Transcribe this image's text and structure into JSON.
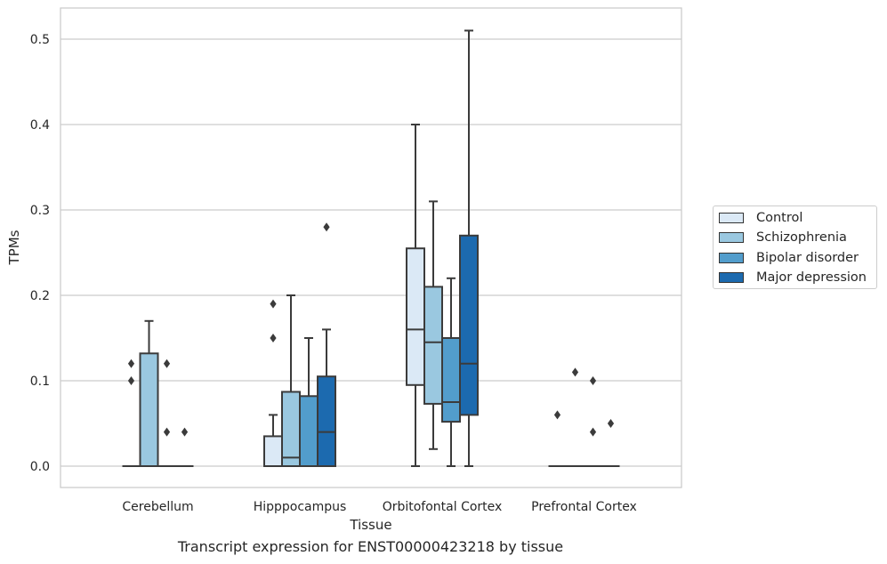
{
  "caption": "Transcript expression for ENST00000423218 by tissue",
  "colors": {
    "Control": "#dbe9f6",
    "Schizophrenia": "#9ac8e0",
    "Bipolar disorder": "#529dcc",
    "Major depression": "#1c6aaf",
    "box_edge": "#3b3b3b",
    "grid": "#cccccc"
  },
  "chart_data": {
    "type": "box",
    "xlabel": "Tissue",
    "ylabel": "TPMs",
    "ylim": [
      -0.025,
      0.535
    ],
    "yticks": [
      "0.0",
      "0.1",
      "0.2",
      "0.3",
      "0.4",
      "0.5"
    ],
    "ytick_values": [
      0.0,
      0.1,
      0.2,
      0.3,
      0.4,
      0.5
    ],
    "grid": "horizontal",
    "legend_position": "right",
    "categories": [
      "Cerebellum",
      "Hipppocampus",
      "Orbitofontal Cortex",
      "Prefrontal Cortex"
    ],
    "series": [
      {
        "name": "Control",
        "boxes": [
          {
            "q1": 0.0,
            "median": 0.0,
            "q3": 0.0,
            "whisker_low": 0.0,
            "whisker_high": 0.0,
            "outliers": [
              0.1,
              0.12
            ]
          },
          {
            "q1": 0.0,
            "median": 0.0,
            "q3": 0.035,
            "whisker_low": 0.0,
            "whisker_high": 0.06,
            "outliers": [
              0.15,
              0.19
            ]
          },
          {
            "q1": 0.095,
            "median": 0.16,
            "q3": 0.255,
            "whisker_low": 0.0,
            "whisker_high": 0.4,
            "outliers": []
          },
          {
            "q1": 0.0,
            "median": 0.0,
            "q3": 0.0,
            "whisker_low": 0.0,
            "whisker_high": 0.0,
            "outliers": [
              0.06
            ]
          }
        ]
      },
      {
        "name": "Schizophrenia",
        "boxes": [
          {
            "q1": 0.0,
            "median": 0.0,
            "q3": 0.132,
            "whisker_low": 0.0,
            "whisker_high": 0.17,
            "outliers": []
          },
          {
            "q1": 0.0,
            "median": 0.01,
            "q3": 0.087,
            "whisker_low": 0.0,
            "whisker_high": 0.2,
            "outliers": []
          },
          {
            "q1": 0.073,
            "median": 0.145,
            "q3": 0.21,
            "whisker_low": 0.02,
            "whisker_high": 0.31,
            "outliers": []
          },
          {
            "q1": 0.0,
            "median": 0.0,
            "q3": 0.0,
            "whisker_low": 0.0,
            "whisker_high": 0.0,
            "outliers": [
              0.11
            ]
          }
        ]
      },
      {
        "name": "Bipolar disorder",
        "boxes": [
          {
            "q1": 0.0,
            "median": 0.0,
            "q3": 0.0,
            "whisker_low": 0.0,
            "whisker_high": 0.0,
            "outliers": [
              0.04,
              0.12
            ]
          },
          {
            "q1": 0.0,
            "median": 0.0,
            "q3": 0.082,
            "whisker_low": 0.0,
            "whisker_high": 0.15,
            "outliers": []
          },
          {
            "q1": 0.052,
            "median": 0.075,
            "q3": 0.15,
            "whisker_low": 0.0,
            "whisker_high": 0.22,
            "outliers": []
          },
          {
            "q1": 0.0,
            "median": 0.0,
            "q3": 0.0,
            "whisker_low": 0.0,
            "whisker_high": 0.0,
            "outliers": [
              0.04,
              0.1
            ]
          }
        ]
      },
      {
        "name": "Major depression",
        "boxes": [
          {
            "q1": 0.0,
            "median": 0.0,
            "q3": 0.0,
            "whisker_low": 0.0,
            "whisker_high": 0.0,
            "outliers": [
              0.04
            ]
          },
          {
            "q1": 0.0,
            "median": 0.04,
            "q3": 0.105,
            "whisker_low": 0.0,
            "whisker_high": 0.16,
            "outliers": [
              0.28
            ]
          },
          {
            "q1": 0.06,
            "median": 0.12,
            "q3": 0.27,
            "whisker_low": 0.0,
            "whisker_high": 0.51,
            "outliers": []
          },
          {
            "q1": 0.0,
            "median": 0.0,
            "q3": 0.0,
            "whisker_low": 0.0,
            "whisker_high": 0.0,
            "outliers": [
              0.05
            ]
          }
        ]
      }
    ]
  }
}
